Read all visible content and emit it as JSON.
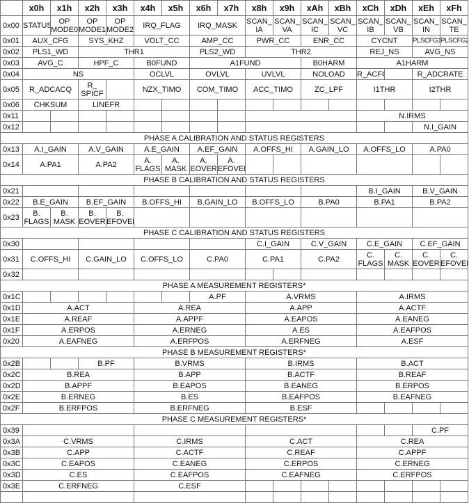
{
  "columns": [
    "",
    "x0h",
    "x1h",
    "x2h",
    "x3h",
    "x4h",
    "x5h",
    "x6h",
    "x7h",
    "x8h",
    "x9h",
    "xAh",
    "xBh",
    "xCh",
    "xDh",
    "xEh",
    "xFh"
  ],
  "rows": [
    {
      "addr": "0x00",
      "tall": true,
      "cells": [
        {
          "t": "STATUS",
          "s": 1
        },
        {
          "t": "OP\nMODE0",
          "s": 1
        },
        {
          "t": "OP\nMODE1",
          "s": 1
        },
        {
          "t": "OP\nMODE2",
          "s": 1
        },
        {
          "t": "IRQ_FLAG",
          "s": 2
        },
        {
          "t": "IRQ_MASK",
          "s": 2
        },
        {
          "t": "SCAN_\nIA",
          "s": 1
        },
        {
          "t": "SCAN_\nVA",
          "s": 1
        },
        {
          "t": "SCAN_\nIC",
          "s": 1
        },
        {
          "t": "SCAN_\nVC",
          "s": 1
        },
        {
          "t": "SCAN_\nIB",
          "s": 1
        },
        {
          "t": "SCAN_\nVB",
          "s": 1
        },
        {
          "t": "SCAN_\nIN",
          "s": 1
        },
        {
          "t": "SCAN_\nTE",
          "s": 1
        }
      ]
    },
    {
      "addr": "0x01",
      "cells": [
        {
          "t": "AUX_CFG",
          "s": 2
        },
        {
          "t": "SYS_KHZ",
          "s": 2
        },
        {
          "t": "VOLT_CC",
          "s": 2
        },
        {
          "t": "AMP_CC",
          "s": 2
        },
        {
          "t": "PWR_CC",
          "s": 2
        },
        {
          "t": "ENR_CC",
          "s": 2
        },
        {
          "t": "CYCNT",
          "s": 2
        },
        {
          "t": "PLSCFG1",
          "s": 1,
          "small": true
        },
        {
          "t": "PLSCFG2",
          "s": 1,
          "small": true
        }
      ]
    },
    {
      "addr": "0x02",
      "cells": [
        {
          "t": "PLS1_WD",
          "s": 2
        },
        {
          "t": "THR1",
          "s": 4
        },
        {
          "t": "PLS2_WD",
          "s": 2
        },
        {
          "t": "THR2",
          "s": 4
        },
        {
          "t": "REJ_NS",
          "s": 2
        },
        {
          "t": "AVG_NS",
          "s": 2
        }
      ]
    },
    {
      "addr": "0x03",
      "cells": [
        {
          "t": "AVG_C",
          "s": 2
        },
        {
          "t": "HPF_C",
          "s": 2
        },
        {
          "t": "B0FUND",
          "s": 2
        },
        {
          "t": "A1FUND",
          "s": 4
        },
        {
          "t": "B0HARM",
          "s": 2
        },
        {
          "t": "A1HARM",
          "s": 4
        }
      ]
    },
    {
      "addr": "0x04",
      "cells": [
        {
          "t": "NS",
          "s": 4
        },
        {
          "t": "OCLVL",
          "s": 2
        },
        {
          "t": "OVLVL",
          "s": 2
        },
        {
          "t": "UVLVL",
          "s": 2
        },
        {
          "t": "NOLOAD",
          "s": 2
        },
        {
          "t": "R_ACFG",
          "s": 1
        },
        {
          "t": "",
          "s": 1
        },
        {
          "t": "R_ADCRATE",
          "s": 2
        }
      ]
    },
    {
      "addr": "0x05",
      "tall": true,
      "cells": [
        {
          "t": "R_ADCACQ",
          "s": 2
        },
        {
          "t": "R_\nSPICF",
          "s": 1
        },
        {
          "t": "",
          "s": 1
        },
        {
          "t": "NZX_TIMO",
          "s": 2
        },
        {
          "t": "COM_TIMO",
          "s": 2
        },
        {
          "t": "ACC_TIMO",
          "s": 2
        },
        {
          "t": "ZC_LPF",
          "s": 2
        },
        {
          "t": "I1THR",
          "s": 2
        },
        {
          "t": "I2THR",
          "s": 2
        }
      ]
    },
    {
      "addr": "0x06",
      "cells": [
        {
          "t": "CHKSUM",
          "s": 2
        },
        {
          "t": "LINEFR",
          "s": 2
        },
        {
          "t": "",
          "s": 1
        },
        {
          "t": "",
          "s": 1
        },
        {
          "t": "",
          "s": 1
        },
        {
          "t": "",
          "s": 1
        },
        {
          "t": "",
          "s": 1
        },
        {
          "t": "",
          "s": 1
        },
        {
          "t": "",
          "s": 1
        },
        {
          "t": "",
          "s": 1
        },
        {
          "t": "",
          "s": 1
        },
        {
          "t": "",
          "s": 1
        },
        {
          "t": "",
          "s": 1
        },
        {
          "t": "",
          "s": 1
        }
      ]
    },
    {
      "addr": "0x11",
      "cells": [
        {
          "t": "",
          "s": 1
        },
        {
          "t": "",
          "s": 1
        },
        {
          "t": "",
          "s": 1
        },
        {
          "t": "",
          "s": 1
        },
        {
          "t": "",
          "s": 1
        },
        {
          "t": "",
          "s": 1
        },
        {
          "t": "",
          "s": 1
        },
        {
          "t": "",
          "s": 1
        },
        {
          "t": "",
          "s": 4
        },
        {
          "t": "N.IRMS",
          "s": 4
        }
      ]
    },
    {
      "addr": "0x12",
      "cells": [
        {
          "t": "",
          "s": 1
        },
        {
          "t": "",
          "s": 1
        },
        {
          "t": "",
          "s": 1
        },
        {
          "t": "",
          "s": 1
        },
        {
          "t": "",
          "s": 1
        },
        {
          "t": "",
          "s": 1
        },
        {
          "t": "",
          "s": 1
        },
        {
          "t": "",
          "s": 1
        },
        {
          "t": "",
          "s": 4
        },
        {
          "t": "",
          "s": 1
        },
        {
          "t": "",
          "s": 1
        },
        {
          "t": "N.I_GAIN",
          "s": 2
        }
      ]
    },
    {
      "section": "PHASE A CALIBRATION AND STATUS REGISTERS"
    },
    {
      "addr": "0x13",
      "cells": [
        {
          "t": "A.I_GAIN",
          "s": 2
        },
        {
          "t": "A.V_GAIN",
          "s": 2
        },
        {
          "t": "A.E_GAIN",
          "s": 2
        },
        {
          "t": "A.EF_GAIN",
          "s": 2
        },
        {
          "t": "A.OFFS_HI",
          "s": 2
        },
        {
          "t": "A.GAIN_LO",
          "s": 2
        },
        {
          "t": "A.OFFS_LO",
          "s": 2
        },
        {
          "t": "A.PA0",
          "s": 2
        }
      ]
    },
    {
      "addr": "0x14",
      "tall": true,
      "cells": [
        {
          "t": "A.PA1",
          "s": 2
        },
        {
          "t": "A.PA2",
          "s": 2
        },
        {
          "t": "A.\nFLAGS",
          "s": 1
        },
        {
          "t": "A.\nMASK",
          "s": 1
        },
        {
          "t": "A.\nEOVER",
          "s": 1
        },
        {
          "t": "A.\nEFOVER",
          "s": 1
        },
        {
          "t": "",
          "s": 1
        },
        {
          "t": "",
          "s": 1
        },
        {
          "t": "",
          "s": 2
        },
        {
          "t": "",
          "s": 2
        },
        {
          "t": "",
          "s": 1
        },
        {
          "t": "",
          "s": 1
        }
      ]
    },
    {
      "section": "PHASE B CALIBRATION AND STATUS REGISTERS"
    },
    {
      "addr": "0x21",
      "cells": [
        {
          "t": "",
          "s": 2
        },
        {
          "t": "",
          "s": 2
        },
        {
          "t": "",
          "s": 2
        },
        {
          "t": "",
          "s": 2
        },
        {
          "t": "",
          "s": 2
        },
        {
          "t": "",
          "s": 2
        },
        {
          "t": "B.I_GAIN",
          "s": 2
        },
        {
          "t": "B.V_GAIN",
          "s": 2
        }
      ]
    },
    {
      "addr": "0x22",
      "cells": [
        {
          "t": "B.E_GAIN",
          "s": 2
        },
        {
          "t": "B.EF_GAIN",
          "s": 2
        },
        {
          "t": "B.OFFS_HI",
          "s": 2
        },
        {
          "t": "B.GAIN_LO",
          "s": 2
        },
        {
          "t": "B.OFFS_LO",
          "s": 2
        },
        {
          "t": "B.PA0",
          "s": 2
        },
        {
          "t": "B.PA1",
          "s": 2
        },
        {
          "t": "B.PA2",
          "s": 2
        }
      ]
    },
    {
      "addr": "0x23",
      "tall": true,
      "cells": [
        {
          "t": "B.\nFLAGS",
          "s": 1
        },
        {
          "t": "B.\nMASK",
          "s": 1
        },
        {
          "t": "B.\nEOVER",
          "s": 1
        },
        {
          "t": "B.\nEFOVER",
          "s": 1
        },
        {
          "t": "",
          "s": 2
        },
        {
          "t": "",
          "s": 2
        },
        {
          "t": "",
          "s": 2
        },
        {
          "t": "",
          "s": 2
        },
        {
          "t": "",
          "s": 2
        },
        {
          "t": "",
          "s": 2
        }
      ]
    },
    {
      "section": "PHASE C CALIBRATION AND STATUS REGISTERS"
    },
    {
      "addr": "0x30",
      "cells": [
        {
          "t": "",
          "s": 2
        },
        {
          "t": "",
          "s": 2
        },
        {
          "t": "",
          "s": 2
        },
        {
          "t": "",
          "s": 2
        },
        {
          "t": "C.I_GAIN",
          "s": 2
        },
        {
          "t": "C.V_GAIN",
          "s": 2
        },
        {
          "t": "C.E_GAIN",
          "s": 2
        },
        {
          "t": "C.EF_GAIN",
          "s": 2
        }
      ]
    },
    {
      "addr": "0x31",
      "tall": true,
      "cells": [
        {
          "t": "C.OFFS_HI",
          "s": 2
        },
        {
          "t": "C.GAIN_LO",
          "s": 2
        },
        {
          "t": "C.OFFS_LO",
          "s": 2
        },
        {
          "t": "C.PA0",
          "s": 2
        },
        {
          "t": "C.PA1",
          "s": 2
        },
        {
          "t": "C.PA2",
          "s": 2
        },
        {
          "t": "C.\nFLAGS",
          "s": 1
        },
        {
          "t": "C.\nMASK",
          "s": 1
        },
        {
          "t": "C.\nEOVER",
          "s": 1
        },
        {
          "t": "C.\nEFOVER",
          "s": 1
        }
      ]
    },
    {
      "addr": "0x32",
      "cells": [
        {
          "t": "",
          "s": 2
        },
        {
          "t": "",
          "s": 2
        },
        {
          "t": "",
          "s": 2
        },
        {
          "t": "",
          "s": 2
        },
        {
          "t": "",
          "s": 1
        },
        {
          "t": "",
          "s": 1
        },
        {
          "t": "",
          "s": 2
        },
        {
          "t": "",
          "s": 1
        },
        {
          "t": "",
          "s": 1
        },
        {
          "t": "",
          "s": 1
        },
        {
          "t": "",
          "s": 1
        }
      ]
    },
    {
      "section": "PHASE A MEASUREMENT REGISTERS*"
    },
    {
      "addr": "0x1C",
      "cells": [
        {
          "t": "",
          "s": 1
        },
        {
          "t": "",
          "s": 1
        },
        {
          "t": "",
          "s": 1
        },
        {
          "t": "",
          "s": 1
        },
        {
          "t": "",
          "s": 1
        },
        {
          "t": "",
          "s": 1
        },
        {
          "t": "A.PF",
          "s": 2
        },
        {
          "t": "A.VRMS",
          "s": 4
        },
        {
          "t": "A.IRMS",
          "s": 4
        }
      ]
    },
    {
      "addr": "0x1D",
      "cells": [
        {
          "t": "A.ACT",
          "s": 4
        },
        {
          "t": "A.REA",
          "s": 4
        },
        {
          "t": "A.APP",
          "s": 4
        },
        {
          "t": "A.ACTF",
          "s": 4
        }
      ]
    },
    {
      "addr": "0x1E",
      "cells": [
        {
          "t": "A.REAF",
          "s": 4
        },
        {
          "t": "A.APPF",
          "s": 4
        },
        {
          "t": "A.EAPOS",
          "s": 4
        },
        {
          "t": "A.EANEG",
          "s": 4
        }
      ]
    },
    {
      "addr": "0x1F",
      "cells": [
        {
          "t": "A.ERPOS",
          "s": 4
        },
        {
          "t": "A.ERNEG",
          "s": 4
        },
        {
          "t": "A.ES",
          "s": 4
        },
        {
          "t": "A.EAFPOS",
          "s": 4
        }
      ]
    },
    {
      "addr": "0x20",
      "cells": [
        {
          "t": "A.EAFNEG",
          "s": 4
        },
        {
          "t": "A.ERFPOS",
          "s": 4
        },
        {
          "t": "A.ERFNEG",
          "s": 4
        },
        {
          "t": "A.ESF",
          "s": 4
        }
      ]
    },
    {
      "section": "PHASE B MEASUREMENT REGISTERS*"
    },
    {
      "addr": "0x2B",
      "cells": [
        {
          "t": "",
          "s": 1
        },
        {
          "t": "",
          "s": 1
        },
        {
          "t": "B.PF",
          "s": 2
        },
        {
          "t": "B.VRMS",
          "s": 4
        },
        {
          "t": "B.IRMS",
          "s": 4
        },
        {
          "t": "B.ACT",
          "s": 4
        }
      ]
    },
    {
      "addr": "0x2C",
      "cells": [
        {
          "t": "B.REA",
          "s": 4
        },
        {
          "t": "B.APP",
          "s": 4
        },
        {
          "t": "B.ACTF",
          "s": 4
        },
        {
          "t": "B.REAF",
          "s": 4
        }
      ]
    },
    {
      "addr": "0x2D",
      "cells": [
        {
          "t": "B.APPF",
          "s": 4
        },
        {
          "t": "B.EAPOS",
          "s": 4
        },
        {
          "t": "B.EANEG",
          "s": 4
        },
        {
          "t": "B.ERPOS",
          "s": 4
        }
      ]
    },
    {
      "addr": "0x2E",
      "cells": [
        {
          "t": "B.ERNEG",
          "s": 4
        },
        {
          "t": "B.ES",
          "s": 4
        },
        {
          "t": "B.EAFPOS",
          "s": 4
        },
        {
          "t": "B.EAFNEG",
          "s": 4
        }
      ]
    },
    {
      "addr": "0x2F",
      "cells": [
        {
          "t": "B.ERFPOS",
          "s": 4
        },
        {
          "t": "B.ERFNEG",
          "s": 4
        },
        {
          "t": "B.ESF",
          "s": 4
        },
        {
          "t": "",
          "s": 1
        },
        {
          "t": "",
          "s": 1
        },
        {
          "t": "",
          "s": 1
        },
        {
          "t": "",
          "s": 1
        }
      ]
    },
    {
      "section": "PHASE C MEASUREMENT REGISTERS*"
    },
    {
      "addr": "0x39",
      "cells": [
        {
          "t": "",
          "s": 4
        },
        {
          "t": "",
          "s": 4
        },
        {
          "t": "",
          "s": 4
        },
        {
          "t": "",
          "s": 1
        },
        {
          "t": "",
          "s": 1
        },
        {
          "t": "C.PF",
          "s": 2
        }
      ]
    },
    {
      "addr": "0x3A",
      "cells": [
        {
          "t": "C.VRMS",
          "s": 4
        },
        {
          "t": "C.IRMS",
          "s": 4
        },
        {
          "t": "C.ACT",
          "s": 4
        },
        {
          "t": "C.REA",
          "s": 4
        }
      ]
    },
    {
      "addr": "0x3B",
      "cells": [
        {
          "t": "C.APP",
          "s": 4
        },
        {
          "t": "C.ACTF",
          "s": 4
        },
        {
          "t": "C.REAF",
          "s": 4
        },
        {
          "t": "C.APPF",
          "s": 4
        }
      ]
    },
    {
      "addr": "0x3C",
      "cells": [
        {
          "t": "C.EAPOS",
          "s": 4
        },
        {
          "t": "C.EANEG",
          "s": 4
        },
        {
          "t": "C.ERPOS",
          "s": 4
        },
        {
          "t": "C.ERNEG",
          "s": 4
        }
      ]
    },
    {
      "addr": "0x3D",
      "cells": [
        {
          "t": "C.ES",
          "s": 4
        },
        {
          "t": "C.EAFPOS",
          "s": 4
        },
        {
          "t": "C.EAFNEG",
          "s": 4
        },
        {
          "t": "C.ERFPOS",
          "s": 4
        }
      ]
    },
    {
      "addr": "0x3E",
      "cells": [
        {
          "t": "C.ERFNEG",
          "s": 4
        },
        {
          "t": "C.ESF",
          "s": 4
        },
        {
          "t": "",
          "s": 1
        },
        {
          "t": "",
          "s": 1
        },
        {
          "t": "",
          "s": 1
        },
        {
          "t": "",
          "s": 1
        },
        {
          "t": "",
          "s": 1
        },
        {
          "t": "",
          "s": 1
        },
        {
          "t": "",
          "s": 1
        },
        {
          "t": "",
          "s": 1
        }
      ]
    },
    {
      "addr": "",
      "cells": [
        {
          "t": "",
          "s": 4
        },
        {
          "t": "",
          "s": 4
        },
        {
          "t": "",
          "s": 1
        },
        {
          "t": "",
          "s": 1
        },
        {
          "t": "",
          "s": 1
        },
        {
          "t": "",
          "s": 1
        },
        {
          "t": "",
          "s": 1
        },
        {
          "t": "",
          "s": 1
        },
        {
          "t": "",
          "s": 1
        },
        {
          "t": "",
          "s": 1
        }
      ]
    }
  ]
}
